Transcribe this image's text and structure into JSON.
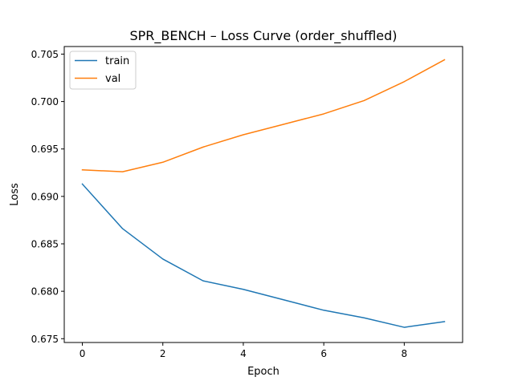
{
  "chart_data": {
    "type": "line",
    "title": "SPR_BENCH – Loss Curve (order_shuffled)",
    "xlabel": "Epoch",
    "ylabel": "Loss",
    "xlim": [
      -0.45,
      9.45
    ],
    "ylim": [
      0.6746,
      0.7058
    ],
    "xticks": [
      0,
      2,
      4,
      6,
      8
    ],
    "yticks": [
      0.675,
      0.68,
      0.685,
      0.69,
      0.695,
      0.7,
      0.705
    ],
    "ytick_labels": [
      "0.675",
      "0.680",
      "0.685",
      "0.690",
      "0.695",
      "0.700",
      "0.705"
    ],
    "grid": false,
    "legend_position": "top-left",
    "x": [
      0,
      1,
      2,
      3,
      4,
      5,
      6,
      7,
      8,
      9
    ],
    "series": [
      {
        "name": "train",
        "color": "#1f77b4",
        "values": [
          0.6913,
          0.6866,
          0.6834,
          0.6811,
          0.6802,
          0.6791,
          0.678,
          0.6772,
          0.6762,
          0.6768
        ]
      },
      {
        "name": "val",
        "color": "#ff7f0e",
        "values": [
          0.6928,
          0.6926,
          0.6936,
          0.6952,
          0.6965,
          0.6976,
          0.6987,
          0.7001,
          0.7021,
          0.7044
        ]
      }
    ]
  }
}
